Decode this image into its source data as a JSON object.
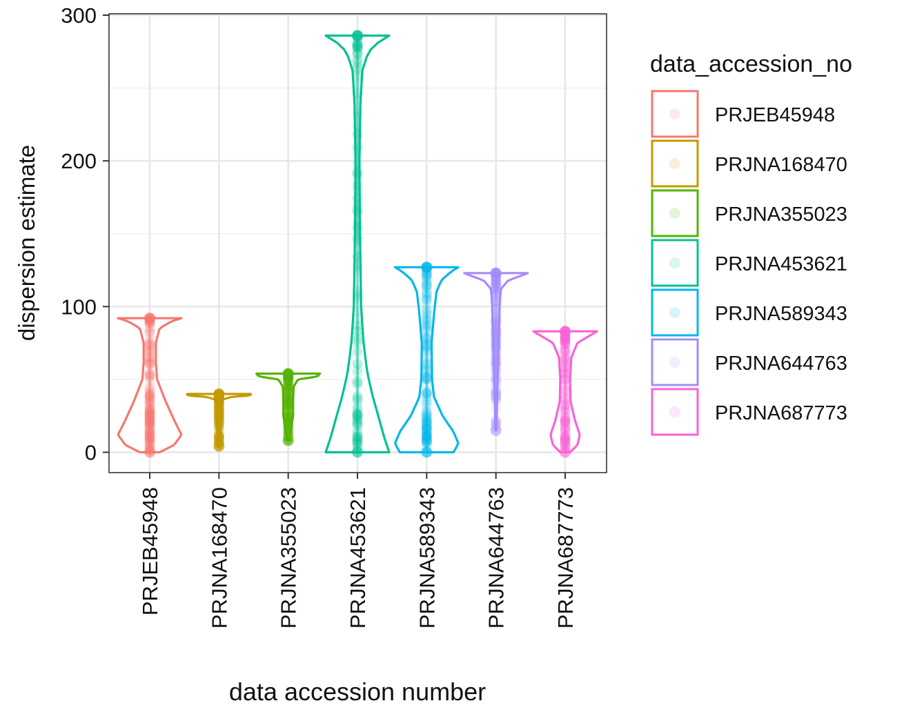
{
  "chart_data": {
    "type": "violin",
    "title": "",
    "xlabel": "data accession number",
    "ylabel": "dispersion estimate",
    "ylim": [
      -14,
      300
    ],
    "yticks": [
      0,
      100,
      200,
      300
    ],
    "grid": true,
    "legend_title": "data_accession_no",
    "legend_position": "right",
    "categories": [
      "PRJEB45948",
      "PRJNA168470",
      "PRJNA355023",
      "PRJNA453621",
      "PRJNA589343",
      "PRJNA644763",
      "PRJNA687773"
    ],
    "series": [
      {
        "name": "PRJEB45948",
        "color": "#F8766D",
        "min": 0,
        "max": 92,
        "density": [
          [
            0,
            0.4
          ],
          [
            5,
            1.0
          ],
          [
            12,
            1.3
          ],
          [
            22,
            1.0
          ],
          [
            35,
            0.65
          ],
          [
            50,
            0.3
          ],
          [
            62,
            0.25
          ],
          [
            75,
            0.25
          ],
          [
            85,
            0.4
          ],
          [
            90,
            0.9
          ],
          [
            92,
            1.3
          ]
        ]
      },
      {
        "name": "PRJNA168470",
        "color": "#C49A00",
        "min": 4,
        "max": 40,
        "density": [
          [
            4,
            0.05
          ],
          [
            10,
            0.06
          ],
          [
            20,
            0.07
          ],
          [
            30,
            0.08
          ],
          [
            36,
            0.12
          ],
          [
            38,
            0.5
          ],
          [
            39,
            1.3
          ],
          [
            40,
            1.3
          ]
        ]
      },
      {
        "name": "PRJNA355023",
        "color": "#53B400",
        "min": 8,
        "max": 54,
        "density": [
          [
            8,
            0.05
          ],
          [
            15,
            0.1
          ],
          [
            25,
            0.2
          ],
          [
            35,
            0.2
          ],
          [
            45,
            0.22
          ],
          [
            50,
            0.4
          ],
          [
            52,
            1.2
          ],
          [
            54,
            1.3
          ]
        ]
      },
      {
        "name": "PRJNA453621",
        "color": "#00C094",
        "min": 0,
        "max": 286,
        "density": [
          [
            0,
            1.3
          ],
          [
            10,
            1.1
          ],
          [
            25,
            0.85
          ],
          [
            40,
            0.6
          ],
          [
            55,
            0.4
          ],
          [
            75,
            0.25
          ],
          [
            100,
            0.15
          ],
          [
            150,
            0.1
          ],
          [
            200,
            0.08
          ],
          [
            240,
            0.12
          ],
          [
            262,
            0.2
          ],
          [
            275,
            0.45
          ],
          [
            282,
            0.9
          ],
          [
            286,
            1.3
          ]
        ]
      },
      {
        "name": "PRJNA589343",
        "color": "#00B6EB",
        "min": 0,
        "max": 127,
        "density": [
          [
            0,
            1.1
          ],
          [
            6,
            1.3
          ],
          [
            14,
            1.1
          ],
          [
            25,
            0.65
          ],
          [
            38,
            0.3
          ],
          [
            50,
            0.22
          ],
          [
            75,
            0.2
          ],
          [
            95,
            0.3
          ],
          [
            110,
            0.4
          ],
          [
            118,
            0.6
          ],
          [
            124,
            1.0
          ],
          [
            127,
            1.3
          ]
        ]
      },
      {
        "name": "PRJNA644763",
        "color": "#A58AFF",
        "min": 15,
        "max": 123,
        "density": [
          [
            15,
            0.02
          ],
          [
            40,
            0.05
          ],
          [
            70,
            0.1
          ],
          [
            100,
            0.15
          ],
          [
            112,
            0.2
          ],
          [
            118,
            0.5
          ],
          [
            121,
            1.0
          ],
          [
            123,
            1.3
          ]
        ]
      },
      {
        "name": "PRJNA687773",
        "color": "#FB61D7",
        "min": 0,
        "max": 83,
        "density": [
          [
            0,
            0.2
          ],
          [
            5,
            0.5
          ],
          [
            12,
            0.6
          ],
          [
            22,
            0.4
          ],
          [
            35,
            0.22
          ],
          [
            50,
            0.2
          ],
          [
            65,
            0.25
          ],
          [
            75,
            0.5
          ],
          [
            80,
            1.0
          ],
          [
            83,
            1.3
          ]
        ]
      }
    ]
  }
}
